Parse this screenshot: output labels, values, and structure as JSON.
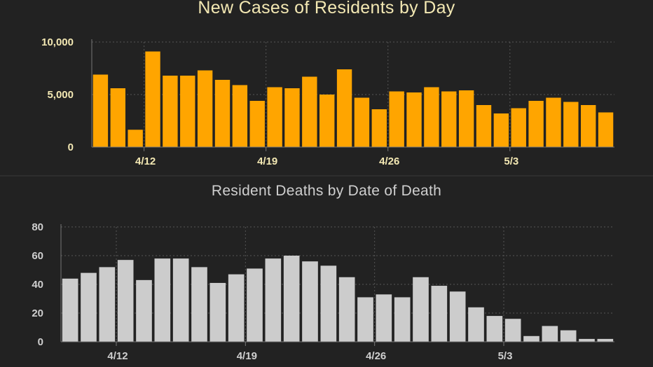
{
  "charts": [
    {
      "title": "New Cases of Residents by Day",
      "colors": {
        "bar": "#ffa500",
        "text": "#f3e8b3",
        "grid": "#555555",
        "axis": "#777777"
      },
      "chart_data": {
        "type": "bar",
        "title": "New Cases of Residents by Day",
        "xlabel": "",
        "ylabel": "",
        "ylim": [
          0,
          10000
        ],
        "yticks": [
          0,
          5000,
          10000
        ],
        "ytick_labels": [
          "0",
          "5,000",
          "10,000"
        ],
        "xtick_labels": [
          "4/12",
          "4/19",
          "4/26",
          "5/3"
        ],
        "xtick_indices": [
          3,
          10,
          17,
          24
        ],
        "grid": true,
        "categories": [
          "4/9",
          "4/10",
          "4/11",
          "4/12",
          "4/13",
          "4/14",
          "4/15",
          "4/16",
          "4/17",
          "4/18",
          "4/19",
          "4/20",
          "4/21",
          "4/22",
          "4/23",
          "4/24",
          "4/25",
          "4/26",
          "4/27",
          "4/28",
          "4/29",
          "4/30",
          "5/1",
          "5/2",
          "5/3",
          "5/4",
          "5/5",
          "5/6",
          "5/7",
          "5/8"
        ],
        "values": [
          6900,
          5600,
          1650,
          9100,
          6800,
          6800,
          7300,
          6400,
          5900,
          4400,
          5700,
          5600,
          6700,
          5000,
          7400,
          4700,
          3600,
          5300,
          5200,
          5700,
          5300,
          5400,
          4000,
          3200,
          3700,
          4400,
          4700,
          4300,
          4000,
          3300
        ]
      }
    },
    {
      "title": "Resident Deaths by Date of Death",
      "colors": {
        "bar": "#cccccc",
        "text": "#cfcfcf",
        "grid": "#555555",
        "axis": "#777777"
      },
      "chart_data": {
        "type": "bar",
        "title": "Resident Deaths by Date of Death",
        "xlabel": "",
        "ylabel": "",
        "ylim": [
          0,
          80
        ],
        "yticks": [
          0,
          20,
          40,
          60,
          80
        ],
        "ytick_labels": [
          "0",
          "20",
          "40",
          "60",
          "80"
        ],
        "xtick_labels": [
          "4/12",
          "4/19",
          "4/26",
          "5/3"
        ],
        "xtick_indices": [
          3,
          10,
          17,
          24
        ],
        "grid": true,
        "categories": [
          "4/9",
          "4/10",
          "4/11",
          "4/12",
          "4/13",
          "4/14",
          "4/15",
          "4/16",
          "4/17",
          "4/18",
          "4/19",
          "4/20",
          "4/21",
          "4/22",
          "4/23",
          "4/24",
          "4/25",
          "4/26",
          "4/27",
          "4/28",
          "4/29",
          "4/30",
          "5/1",
          "5/2",
          "5/3",
          "5/4",
          "5/5",
          "5/6",
          "5/7",
          "5/8"
        ],
        "values": [
          44,
          48,
          52,
          57,
          43,
          58,
          58,
          52,
          41,
          47,
          51,
          58,
          60,
          56,
          53,
          45,
          31,
          33,
          31,
          45,
          39,
          35,
          24,
          18,
          16,
          4,
          11,
          8,
          2,
          2
        ]
      }
    }
  ]
}
